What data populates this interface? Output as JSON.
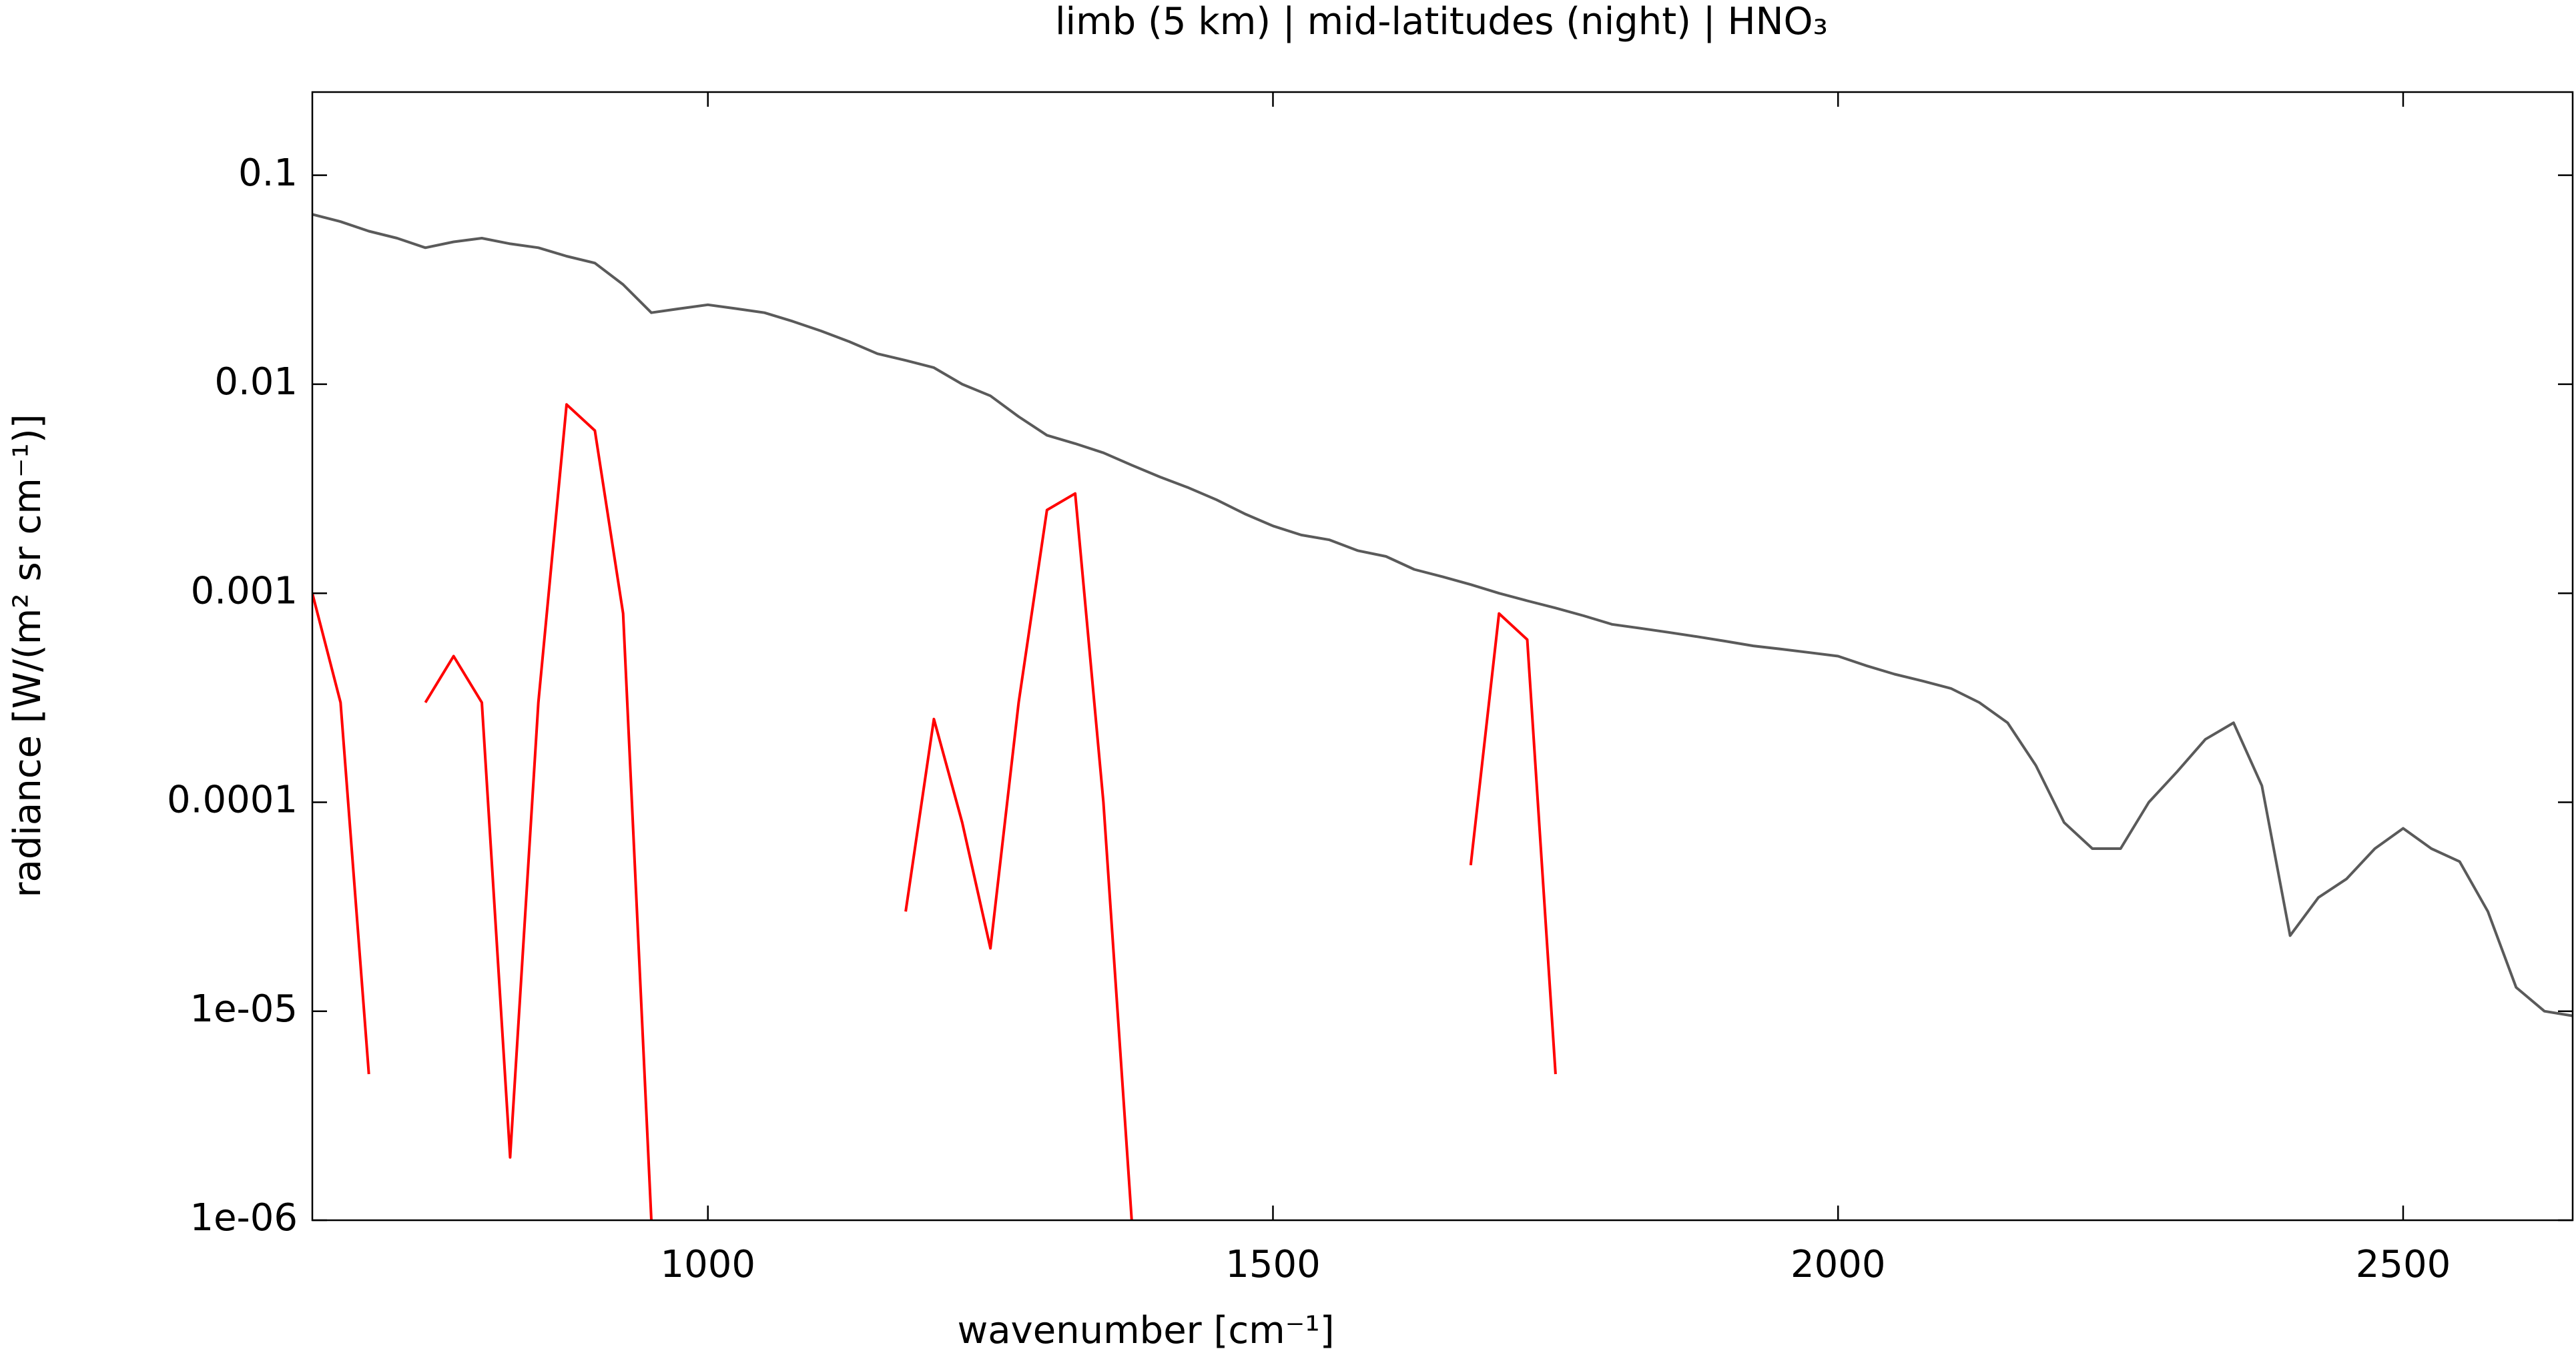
{
  "chart_data": {
    "type": "line",
    "title": "limb (5 km) | mid-latitudes (night) | HNO₃",
    "xlabel": "wavenumber [cm⁻¹]",
    "ylabel": "radiance [W/(m² sr cm⁻¹)]",
    "x": [
      650,
      675,
      700,
      725,
      750,
      775,
      800,
      825,
      850,
      875,
      900,
      925,
      950,
      975,
      1000,
      1025,
      1050,
      1075,
      1100,
      1125,
      1150,
      1175,
      1200,
      1225,
      1250,
      1275,
      1300,
      1325,
      1350,
      1375,
      1400,
      1425,
      1450,
      1475,
      1500,
      1525,
      1550,
      1575,
      1600,
      1625,
      1650,
      1675,
      1700,
      1725,
      1750,
      1775,
      1800,
      1825,
      1850,
      1875,
      1900,
      1925,
      1950,
      1975,
      2000,
      2025,
      2050,
      2075,
      2100,
      2125,
      2150,
      2175,
      2200,
      2225,
      2250,
      2275,
      2300,
      2325,
      2350,
      2375,
      2400,
      2425,
      2450,
      2475,
      2500,
      2525,
      2550,
      2575,
      2600,
      2625,
      2650
    ],
    "series": [
      {
        "color": "#5a5a5a",
        "values": [
          0.065,
          0.06,
          0.054,
          0.05,
          0.045,
          0.048,
          0.05,
          0.047,
          0.045,
          0.041,
          0.038,
          0.03,
          0.022,
          0.023,
          0.024,
          0.023,
          0.022,
          0.02,
          0.018,
          0.016,
          0.014,
          0.013,
          0.012,
          0.01,
          0.0088,
          0.007,
          0.0057,
          0.0052,
          0.0047,
          0.0041,
          0.0036,
          0.0032,
          0.0028,
          0.0024,
          0.0021,
          0.0019,
          0.0018,
          0.0016,
          0.0015,
          0.0013,
          0.0012,
          0.0011,
          0.001,
          0.00092,
          0.00085,
          0.00078,
          0.00071,
          0.00068,
          0.00065,
          0.00062,
          0.00059,
          0.00056,
          0.00054,
          0.00052,
          0.0005,
          0.00045,
          0.00041,
          0.00038,
          0.00035,
          0.0003,
          0.00024,
          0.00015,
          8e-05,
          6e-05,
          6e-05,
          0.0001,
          0.00014,
          0.0002,
          0.00024,
          0.00012,
          2.3e-05,
          3.5e-05,
          4.3e-05,
          6e-05,
          7.5e-05,
          6e-05,
          5.2e-05,
          3e-05,
          1.3e-05,
          1e-05,
          9.5e-06
        ]
      },
      {
        "color": "#ff0000",
        "values": [
          0.001,
          0.0003,
          5e-06,
          null,
          0.0003,
          0.0005,
          0.0003,
          2e-06,
          0.0003,
          0.008,
          0.006,
          0.0008,
          1e-06,
          null,
          null,
          null,
          null,
          null,
          null,
          null,
          null,
          3e-05,
          0.00025,
          8e-05,
          2e-05,
          0.0003,
          0.0025,
          0.003,
          0.0001,
          1e-06,
          null,
          null,
          null,
          null,
          null,
          null,
          null,
          null,
          null,
          null,
          null,
          5e-05,
          0.0008,
          0.0006,
          5e-06,
          null,
          null,
          null,
          null,
          null,
          null,
          null,
          null,
          null,
          null,
          null,
          null,
          null,
          null,
          null,
          null,
          null,
          null,
          null,
          null,
          null,
          null,
          null,
          null,
          null,
          null,
          null,
          null,
          null,
          null,
          null,
          null,
          null,
          null,
          null,
          null
        ]
      }
    ],
    "xlim": [
      650,
      2650
    ],
    "ylim": [
      1e-06,
      0.25
    ],
    "ylog": true,
    "xticks": [
      1000,
      1500,
      2000,
      2500
    ],
    "yticks": [
      0.1,
      0.01,
      0.001,
      0.0001,
      {
        "value": 1e-05,
        "label": "1e-05"
      },
      {
        "value": 1e-06,
        "label": "1e-06"
      }
    ]
  }
}
